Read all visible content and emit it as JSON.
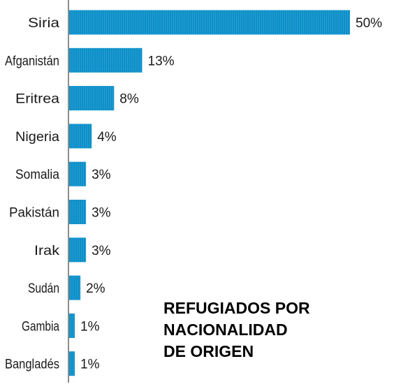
{
  "chart_data": {
    "type": "bar",
    "orientation": "horizontal",
    "title_lines": [
      "REFUGIADOS POR",
      "NACIONALIDAD",
      "DE ORIGEN"
    ],
    "categories": [
      "Siria",
      "Afganistán",
      "Eritrea",
      "Nigeria",
      "Somalia",
      "Pakistán",
      "Irak",
      "Sudán",
      "Gambia",
      "Bangladés"
    ],
    "values": [
      50,
      13,
      8,
      4,
      3,
      3,
      3,
      2,
      1,
      1
    ],
    "value_labels": [
      "50%",
      "13%",
      "8%",
      "4%",
      "3%",
      "3%",
      "3%",
      "2%",
      "1%",
      "1%"
    ],
    "unit": "%",
    "xlim": [
      0,
      50
    ],
    "grid": false,
    "bar_color": "#0b8fc9",
    "axis_color": "#8c8c8c"
  }
}
